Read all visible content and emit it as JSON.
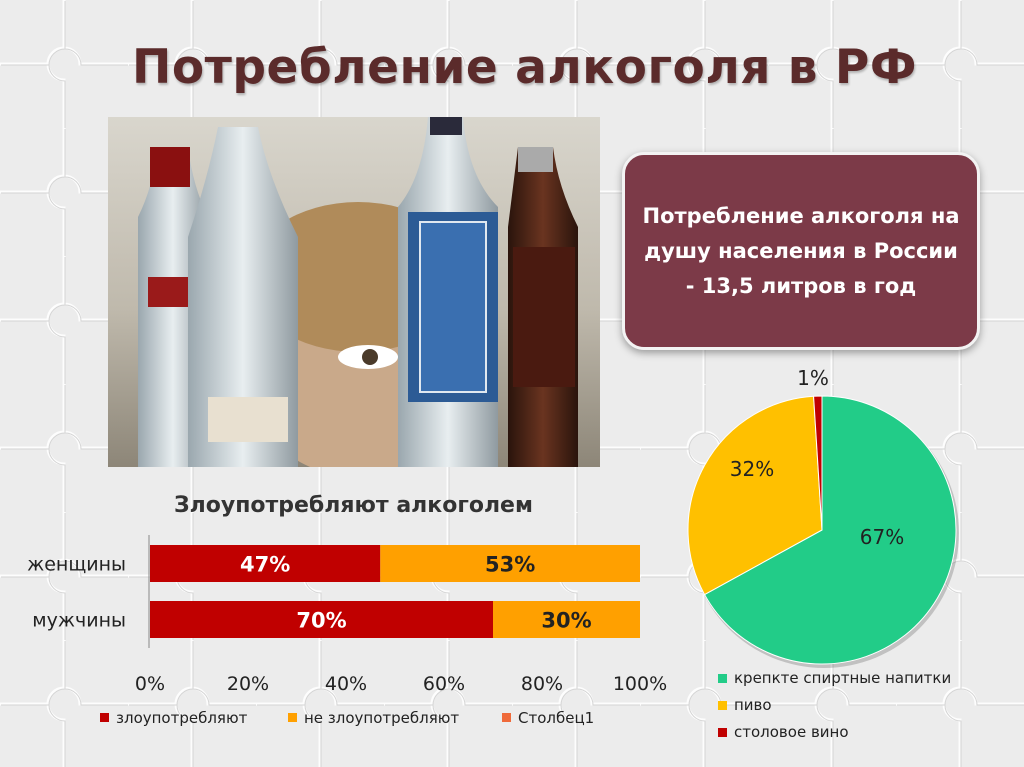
{
  "slide": {
    "title": "Потребление алкоголя в РФ",
    "callout": "Потребление алкоголя на душу населения в России - 13,5 литров в год"
  },
  "colors": {
    "title": "#5b2b2b",
    "callout_bg": "#7c3a48",
    "bar_abuse": "#c00000",
    "bar_no_abuse": "#ffa000",
    "bar_col1": "#ef6a3a",
    "pie_spirits": "#22cc88",
    "pie_beer": "#ffc000",
    "pie_wine": "#c00000"
  },
  "chart_data": [
    {
      "type": "bar",
      "orientation": "horizontal-stacked-100",
      "title": "Злоупотребляют алкоголем",
      "categories": [
        "женщины",
        "мужчины"
      ],
      "series": [
        {
          "name": "злоупотребляют",
          "values": [
            47,
            70
          ],
          "labels": [
            "47%",
            "70%"
          ]
        },
        {
          "name": "не злоупотребляют",
          "values": [
            53,
            30
          ],
          "labels": [
            "53%",
            "30%"
          ]
        },
        {
          "name": "Столбец1",
          "values": [
            0,
            0
          ]
        }
      ],
      "xlim": [
        0,
        100
      ],
      "xticks": [
        "0%",
        "20%",
        "40%",
        "60%",
        "80%",
        "100%"
      ],
      "legend": "bottom"
    },
    {
      "type": "pie",
      "slices": [
        {
          "name": "крепкте спиртные напитки",
          "value": 67,
          "label": "67%"
        },
        {
          "name": "пиво",
          "value": 32,
          "label": "32%"
        },
        {
          "name": "столовое вино",
          "value": 1,
          "label": "1%"
        }
      ],
      "legend": "bottom"
    }
  ]
}
